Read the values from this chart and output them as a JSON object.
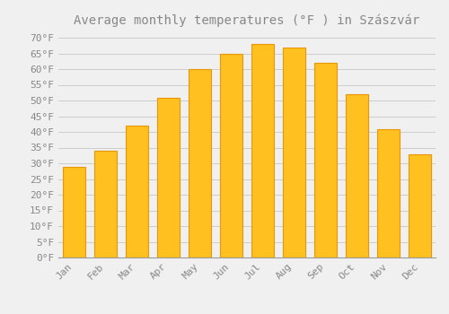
{
  "title": "Average monthly temperatures (°F ) in Szászvár",
  "months": [
    "Jan",
    "Feb",
    "Mar",
    "Apr",
    "May",
    "Jun",
    "Jul",
    "Aug",
    "Sep",
    "Oct",
    "Nov",
    "Dec"
  ],
  "values": [
    29,
    34,
    42,
    51,
    60,
    65,
    68,
    67,
    62,
    52,
    41,
    33
  ],
  "bar_color": "#FFC020",
  "bar_edge_color": "#E8960A",
  "background_color": "#F0F0F0",
  "grid_color": "#CCCCCC",
  "text_color": "#888888",
  "ylim": [
    0,
    72
  ],
  "yticks": [
    0,
    5,
    10,
    15,
    20,
    25,
    30,
    35,
    40,
    45,
    50,
    55,
    60,
    65,
    70
  ],
  "title_fontsize": 10,
  "tick_fontsize": 8,
  "bar_width": 0.7
}
